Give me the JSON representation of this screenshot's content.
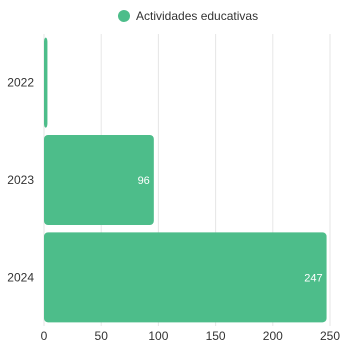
{
  "chart_data": {
    "type": "bar",
    "orientation": "horizontal",
    "categories": [
      "2022",
      "2023",
      "2024"
    ],
    "series": [
      {
        "name": "Actividades educativas",
        "values": [
          3,
          96,
          247
        ],
        "color": "#4dbd8a"
      }
    ],
    "data_labels": [
      "",
      "96",
      "247"
    ],
    "x_ticks": [
      "0",
      "50",
      "100",
      "150",
      "200",
      "250"
    ],
    "xlim": [
      0,
      250
    ],
    "grid": "vertical",
    "legend_position": "top-center"
  }
}
